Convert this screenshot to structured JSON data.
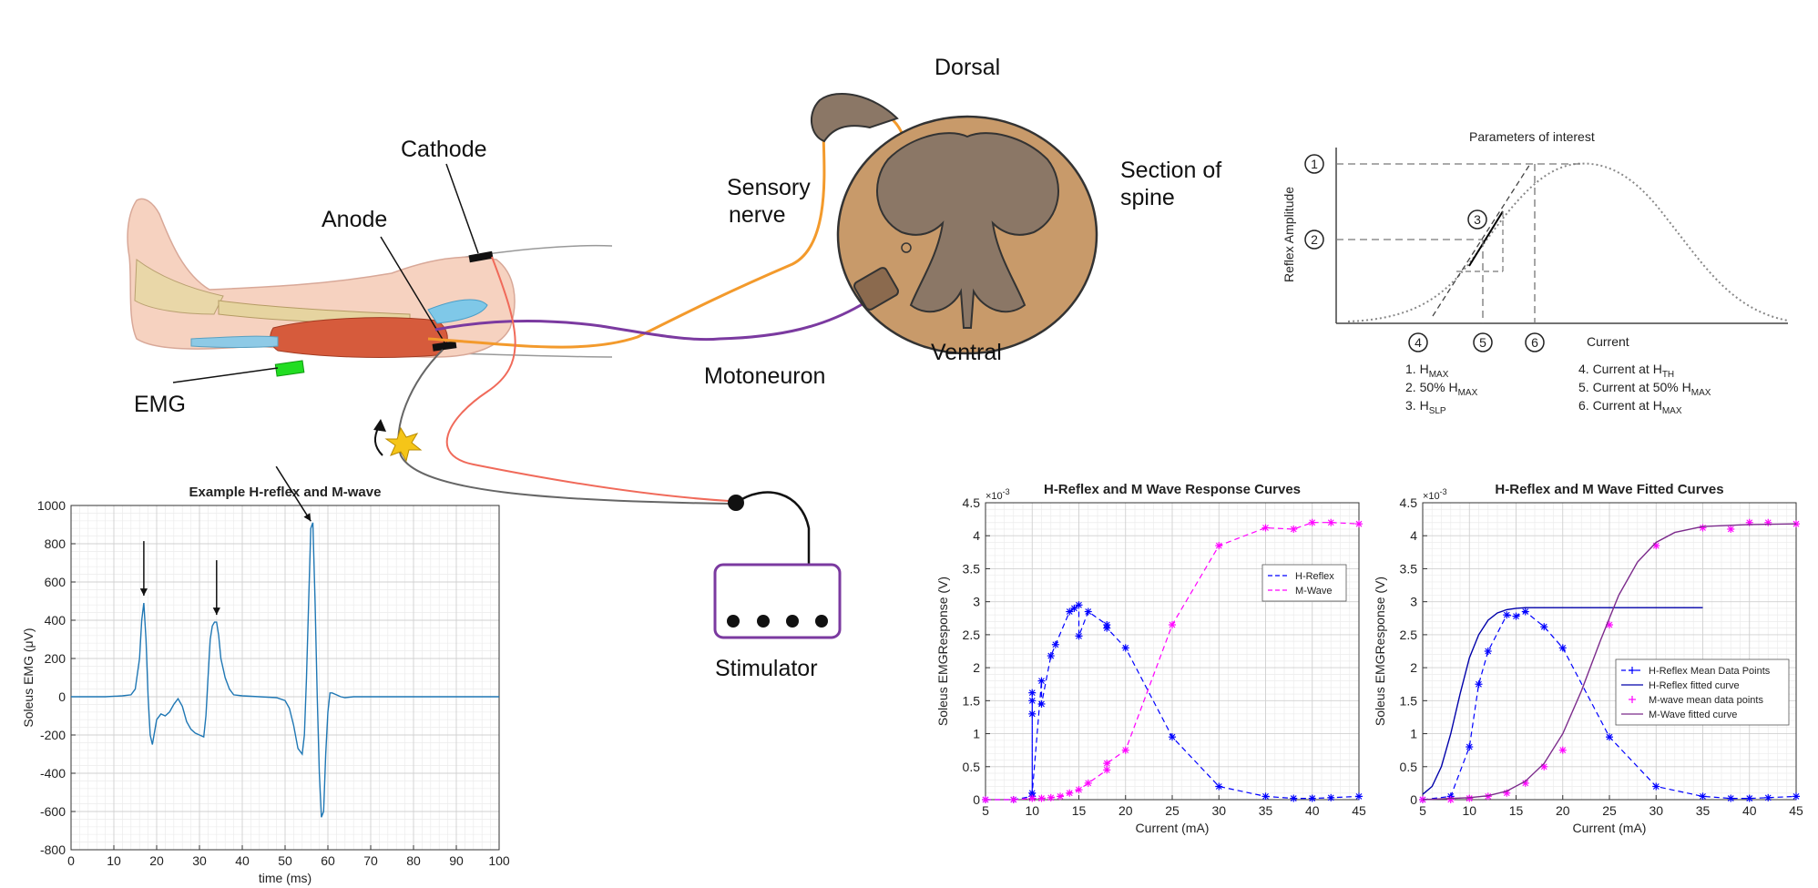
{
  "diagram": {
    "labels": {
      "cathode": "Cathode",
      "anode": "Anode",
      "emg": "EMG",
      "sensory_1": "Sensory",
      "sensory_2": "nerve",
      "motoneuron": "Motoneuron",
      "dorsal": "Dorsal",
      "ventral": "Ventral",
      "section_1": "Section of",
      "section_2": "spine",
      "stimulator": "Stimulator"
    },
    "colors": {
      "sensory": "#f39a2c",
      "motor": "#7b3aa0",
      "cathode_wire": "#f06a5a",
      "anode_wire": "#666666",
      "stimulator_box": "#7b3aa0",
      "emg_pad": "#22dd22",
      "spine_outer": "#c89a6a",
      "spine_inner": "#8b7766"
    }
  },
  "params_figure": {
    "title": "Parameters of interest",
    "ylabel": "Reflex Amplitude",
    "xlabel": "Current",
    "markers_y": [
      "1",
      "2",
      "3"
    ],
    "markers_x": [
      "4",
      "5",
      "6"
    ],
    "legend_left": [
      {
        "n": "1. H",
        "sub": "MAX"
      },
      {
        "n": "2. 50% H",
        "sub": "MAX"
      },
      {
        "n": "3. H",
        "sub": "SLP"
      }
    ],
    "legend_right": [
      {
        "n": "4. Current at H",
        "sub": "TH"
      },
      {
        "n": "5. Current at 50% H",
        "sub": "MAX"
      },
      {
        "n": "6. Current at H",
        "sub": "MAX"
      }
    ]
  },
  "chart_data": [
    {
      "type": "line",
      "title": "Example H-reflex and M-wave",
      "xlabel": "time (ms)",
      "ylabel": "Soleus EMG (μV)",
      "xlim": [
        0,
        100
      ],
      "ylim": [
        -800,
        1000
      ],
      "xticks": [
        0,
        10,
        20,
        30,
        40,
        50,
        60,
        70,
        80,
        90,
        100
      ],
      "yticks": [
        -800,
        -600,
        -400,
        -200,
        0,
        200,
        400,
        600,
        800,
        1000
      ],
      "grid": true,
      "color": "#1f77b4",
      "series": [
        {
          "x": [
            0,
            8,
            12,
            14,
            15,
            16,
            16.5,
            17,
            17.5,
            18,
            18.5,
            19,
            20,
            21,
            22,
            23,
            24,
            25,
            26,
            27,
            28,
            29,
            30,
            31,
            31.5,
            32,
            32.5,
            33,
            33.5,
            34,
            34.5,
            35,
            36,
            37,
            38,
            40,
            44,
            48,
            50,
            51,
            52,
            53,
            54,
            54.5,
            55,
            55.5,
            56,
            56.5,
            57,
            57.5,
            58,
            58.5,
            59,
            59.5,
            60,
            60.5,
            61,
            62,
            63,
            64,
            66,
            70,
            80,
            90,
            100
          ],
          "y": [
            0,
            0,
            5,
            10,
            40,
            200,
            400,
            490,
            300,
            0,
            -200,
            -250,
            -120,
            -90,
            -100,
            -80,
            -40,
            -10,
            -50,
            -130,
            -170,
            -190,
            -200,
            -210,
            -100,
            100,
            300,
            370,
            390,
            390,
            320,
            200,
            100,
            40,
            10,
            5,
            0,
            -5,
            -20,
            -60,
            -150,
            -270,
            -300,
            -200,
            100,
            500,
            880,
            910,
            500,
            0,
            -400,
            -630,
            -600,
            -300,
            -80,
            20,
            20,
            10,
            0,
            -5,
            0,
            0,
            0,
            0,
            0
          ]
        }
      ],
      "arrows_at": [
        17,
        34,
        56
      ]
    },
    {
      "type": "scatter",
      "title": "H-Reflex and M Wave Response Curves",
      "xlabel": "Current (mA)",
      "ylabel": "Soleus EMGResponse (V)",
      "y_exponent": "×10",
      "y_exponent_power": "-3",
      "xlim": [
        5,
        45
      ],
      "ylim": [
        0,
        4.5
      ],
      "xticks": [
        5,
        10,
        15,
        20,
        25,
        30,
        35,
        40,
        45
      ],
      "yticks": [
        0,
        0.5,
        1,
        1.5,
        2,
        2.5,
        3,
        3.5,
        4,
        4.5
      ],
      "grid": true,
      "legend": "top-right",
      "series": [
        {
          "name": "H-Reflex",
          "color": "#0000ff",
          "style": "dashed-markers",
          "x": [
            5,
            8,
            10,
            10,
            10,
            10,
            10,
            11,
            11,
            12,
            12.5,
            14,
            14.5,
            15,
            15,
            16,
            18,
            18,
            20,
            25,
            30,
            35,
            38,
            40,
            42,
            45
          ],
          "y": [
            0,
            0,
            0.05,
            1.5,
            1.3,
            1.62,
            0.1,
            1.8,
            1.45,
            2.18,
            2.35,
            2.85,
            2.9,
            2.95,
            2.48,
            2.85,
            2.65,
            2.6,
            2.3,
            0.95,
            0.2,
            0.05,
            0.02,
            0.02,
            0.03,
            0.05
          ]
        },
        {
          "name": "M-Wave",
          "color": "#ff00ff",
          "style": "dashed-markers",
          "x": [
            5,
            8,
            10,
            11,
            12,
            13,
            14,
            15,
            16,
            18,
            18,
            20,
            25,
            30,
            35,
            38,
            40,
            42,
            45
          ],
          "y": [
            0,
            0,
            0.02,
            0.02,
            0.03,
            0.05,
            0.1,
            0.15,
            0.25,
            0.45,
            0.55,
            0.75,
            2.65,
            3.85,
            4.12,
            4.1,
            4.2,
            4.2,
            4.18
          ]
        }
      ]
    },
    {
      "type": "scatter",
      "title": "H-Reflex and M Wave Fitted Curves",
      "xlabel": "Current (mA)",
      "ylabel": "Soleus EMGResponse (V)",
      "y_exponent": "×10",
      "y_exponent_power": "-3",
      "xlim": [
        5,
        45
      ],
      "ylim": [
        0,
        4.5
      ],
      "xticks": [
        5,
        10,
        15,
        20,
        25,
        30,
        35,
        40,
        45
      ],
      "yticks": [
        0,
        0.5,
        1,
        1.5,
        2,
        2.5,
        3,
        3.5,
        4,
        4.5
      ],
      "grid": true,
      "legend": "bottom-right",
      "series": [
        {
          "name": "H-Reflex Mean Data Points",
          "color": "#0000ff",
          "style": "dashed-markers",
          "x": [
            5,
            8,
            10,
            11,
            12,
            14,
            15,
            16,
            18,
            20,
            25,
            30,
            35,
            38,
            40,
            42,
            45
          ],
          "y": [
            0,
            0.05,
            0.8,
            1.75,
            2.25,
            2.8,
            2.78,
            2.85,
            2.62,
            2.3,
            0.95,
            0.2,
            0.05,
            0.02,
            0.02,
            0.03,
            0.05
          ]
        },
        {
          "name": "H-Reflex fitted curve",
          "color": "#0000aa",
          "style": "solid",
          "x": [
            5,
            6,
            7,
            8,
            9,
            10,
            11,
            12,
            13,
            14,
            15,
            16,
            18,
            20,
            25,
            30,
            35
          ],
          "y": [
            0.08,
            0.2,
            0.5,
            1.0,
            1.6,
            2.15,
            2.5,
            2.72,
            2.83,
            2.88,
            2.9,
            2.91,
            2.91,
            2.91,
            2.91,
            2.91,
            2.91
          ]
        },
        {
          "name": "M-wave mean data points",
          "color": "#ff00ff",
          "style": "markers",
          "x": [
            5,
            8,
            10,
            12,
            14,
            16,
            18,
            20,
            25,
            30,
            35,
            38,
            40,
            42,
            45
          ],
          "y": [
            0,
            0,
            0.02,
            0.05,
            0.1,
            0.25,
            0.5,
            0.75,
            2.65,
            3.85,
            4.12,
            4.1,
            4.2,
            4.2,
            4.18
          ]
        },
        {
          "name": "M-Wave fitted curve",
          "color": "#7b2a8b",
          "style": "solid",
          "x": [
            5,
            10,
            12,
            14,
            16,
            18,
            20,
            22,
            24,
            25,
            26,
            28,
            30,
            32,
            35,
            40,
            45
          ],
          "y": [
            0,
            0.03,
            0.06,
            0.13,
            0.28,
            0.55,
            1.0,
            1.65,
            2.4,
            2.75,
            3.1,
            3.6,
            3.9,
            4.05,
            4.14,
            4.17,
            4.18
          ]
        }
      ]
    }
  ]
}
